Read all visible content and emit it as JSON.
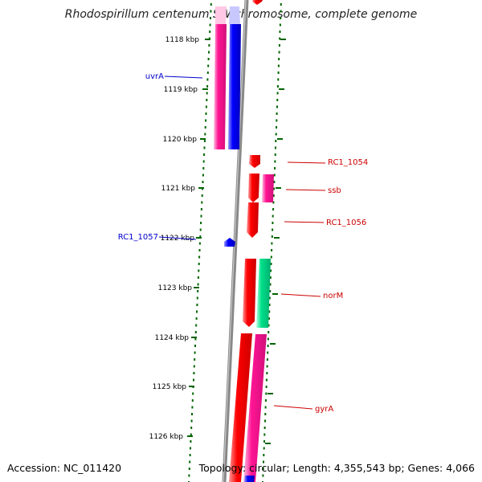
{
  "title": "Rhodospirillum centenum SW chromosome, complete genome",
  "accession": "Accession: NC_011420",
  "topology": "Topology: circular; Length: 4,355,543 bp; Genes: 4,066",
  "colors": {
    "forward_gene": "#ff0000",
    "reverse_gene": "#0000ff",
    "pink_gene": "#ff1493",
    "green_gene": "#00e08a",
    "backbone": "#888888",
    "dots": "#006400",
    "reverse_label": "#0000cc",
    "forward_label": "#cc0000"
  },
  "ticks": [
    {
      "label": "1118 kbp"
    },
    {
      "label": "1119 kbp"
    },
    {
      "label": "1120 kbp"
    },
    {
      "label": "1121 kbp"
    },
    {
      "label": "1122 kbp"
    },
    {
      "label": "1123 kbp"
    },
    {
      "label": "1124 kbp"
    },
    {
      "label": "1125 kbp"
    },
    {
      "label": "1126 kbp"
    }
  ],
  "gene_labels": [
    {
      "text": "uvrA",
      "strand": "reverse"
    },
    {
      "text": "RC1_1057",
      "strand": "reverse"
    },
    {
      "text": "RC1_1054",
      "strand": "forward"
    },
    {
      "text": "ssb",
      "strand": "forward"
    },
    {
      "text": "RC1_1056",
      "strand": "forward"
    },
    {
      "text": "norM",
      "strand": "forward"
    },
    {
      "text": "gyrA",
      "strand": "forward"
    }
  ]
}
